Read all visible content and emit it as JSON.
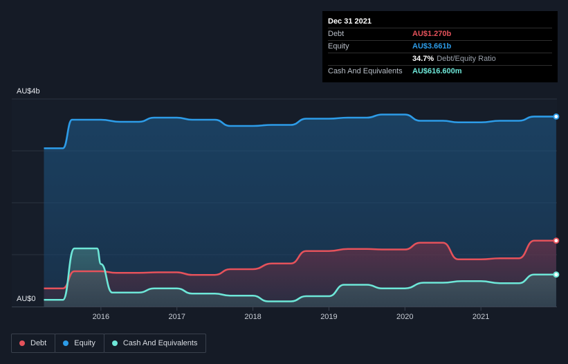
{
  "tooltip": {
    "date": "Dec 31 2021",
    "rows": [
      {
        "label": "Debt",
        "value": "AU$1.270b",
        "color": "#e5525b"
      },
      {
        "label": "Equity",
        "value": "AU$3.661b",
        "color": "#2d9ce8"
      },
      {
        "label": "",
        "value": "34.7%",
        "sub": "Debt/Equity Ratio",
        "color": "#ffffff"
      },
      {
        "label": "Cash And Equivalents",
        "value": "AU$616.600m",
        "color": "#6ee7d8"
      }
    ]
  },
  "legend": [
    {
      "label": "Debt",
      "color": "#e5525b"
    },
    {
      "label": "Equity",
      "color": "#2d9ce8"
    },
    {
      "label": "Cash And Equivalents",
      "color": "#6ee7d8"
    }
  ],
  "chart_data": {
    "type": "area",
    "title": "",
    "xlabel": "",
    "ylabel": "",
    "ylim": [
      0,
      4.0
    ],
    "xlim": [
      2015.1,
      2022.0
    ],
    "y_tick_labels": [
      {
        "value": 4.0,
        "label": "AU$4b"
      },
      {
        "value": 0,
        "label": "AU$0"
      }
    ],
    "gridlines_y": [
      1,
      2,
      3,
      4
    ],
    "x_ticks": [
      {
        "value": 2016,
        "label": "2016"
      },
      {
        "value": 2017,
        "label": "2017"
      },
      {
        "value": 2018,
        "label": "2018"
      },
      {
        "value": 2019,
        "label": "2019"
      },
      {
        "value": 2020,
        "label": "2020"
      },
      {
        "value": 2021,
        "label": "2021"
      }
    ],
    "series": [
      {
        "name": "Equity",
        "color": "#2d9ce8",
        "points": [
          [
            2015.25,
            3.05
          ],
          [
            2015.5,
            3.05
          ],
          [
            2015.62,
            3.6
          ],
          [
            2016.0,
            3.6
          ],
          [
            2016.25,
            3.56
          ],
          [
            2016.5,
            3.56
          ],
          [
            2016.7,
            3.64
          ],
          [
            2017.0,
            3.64
          ],
          [
            2017.2,
            3.6
          ],
          [
            2017.5,
            3.6
          ],
          [
            2017.7,
            3.48
          ],
          [
            2018.0,
            3.48
          ],
          [
            2018.25,
            3.5
          ],
          [
            2018.5,
            3.5
          ],
          [
            2018.7,
            3.62
          ],
          [
            2019.0,
            3.62
          ],
          [
            2019.25,
            3.64
          ],
          [
            2019.5,
            3.64
          ],
          [
            2019.7,
            3.7
          ],
          [
            2020.0,
            3.7
          ],
          [
            2020.2,
            3.58
          ],
          [
            2020.5,
            3.58
          ],
          [
            2020.7,
            3.55
          ],
          [
            2021.0,
            3.55
          ],
          [
            2021.25,
            3.58
          ],
          [
            2021.5,
            3.58
          ],
          [
            2021.7,
            3.661
          ],
          [
            2021.99,
            3.661
          ]
        ]
      },
      {
        "name": "Debt",
        "color": "#e5525b",
        "points": [
          [
            2015.25,
            0.35
          ],
          [
            2015.5,
            0.35
          ],
          [
            2015.65,
            0.68
          ],
          [
            2016.0,
            0.68
          ],
          [
            2016.2,
            0.65
          ],
          [
            2016.5,
            0.65
          ],
          [
            2016.75,
            0.66
          ],
          [
            2017.0,
            0.66
          ],
          [
            2017.2,
            0.61
          ],
          [
            2017.5,
            0.61
          ],
          [
            2017.7,
            0.72
          ],
          [
            2018.0,
            0.72
          ],
          [
            2018.25,
            0.83
          ],
          [
            2018.5,
            0.83
          ],
          [
            2018.7,
            1.07
          ],
          [
            2019.0,
            1.07
          ],
          [
            2019.25,
            1.11
          ],
          [
            2019.5,
            1.11
          ],
          [
            2019.7,
            1.1
          ],
          [
            2020.0,
            1.1
          ],
          [
            2020.2,
            1.23
          ],
          [
            2020.5,
            1.23
          ],
          [
            2020.7,
            0.91
          ],
          [
            2021.0,
            0.91
          ],
          [
            2021.25,
            0.93
          ],
          [
            2021.5,
            0.93
          ],
          [
            2021.7,
            1.27
          ],
          [
            2021.99,
            1.27
          ]
        ]
      },
      {
        "name": "Cash And Equivalents",
        "color": "#6ee7d8",
        "points": [
          [
            2015.25,
            0.13
          ],
          [
            2015.5,
            0.13
          ],
          [
            2015.65,
            1.12
          ],
          [
            2015.95,
            1.12
          ],
          [
            2016.0,
            0.82
          ],
          [
            2016.15,
            0.27
          ],
          [
            2016.5,
            0.27
          ],
          [
            2016.7,
            0.35
          ],
          [
            2017.0,
            0.35
          ],
          [
            2017.2,
            0.25
          ],
          [
            2017.5,
            0.25
          ],
          [
            2017.7,
            0.21
          ],
          [
            2018.0,
            0.21
          ],
          [
            2018.2,
            0.1
          ],
          [
            2018.5,
            0.1
          ],
          [
            2018.7,
            0.2
          ],
          [
            2019.0,
            0.2
          ],
          [
            2019.2,
            0.42
          ],
          [
            2019.5,
            0.42
          ],
          [
            2019.7,
            0.35
          ],
          [
            2020.0,
            0.35
          ],
          [
            2020.25,
            0.46
          ],
          [
            2020.5,
            0.46
          ],
          [
            2020.75,
            0.49
          ],
          [
            2021.0,
            0.49
          ],
          [
            2021.25,
            0.45
          ],
          [
            2021.5,
            0.45
          ],
          [
            2021.7,
            0.6166
          ],
          [
            2021.99,
            0.6166
          ]
        ]
      }
    ]
  }
}
